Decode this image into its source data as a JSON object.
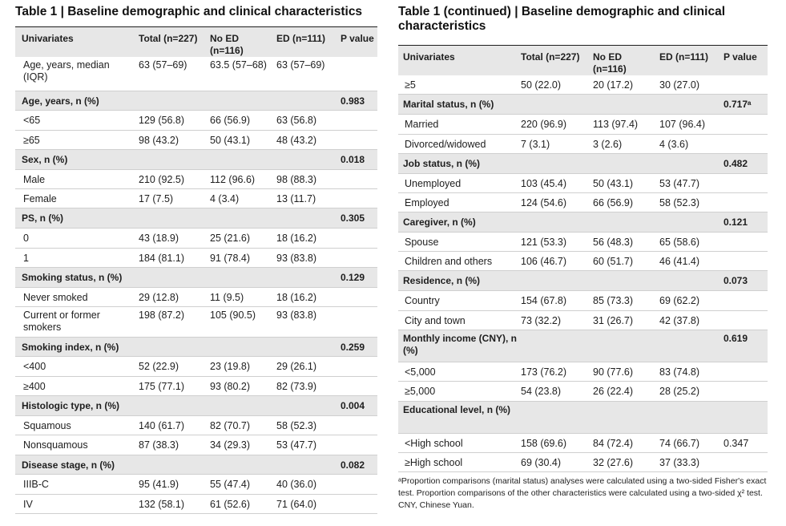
{
  "left_table": {
    "title": "Table 1 | Baseline demographic and clinical characteristics",
    "headers": [
      "Univariates",
      "Total (n=227)",
      "No ED (n=116)",
      "ED (n=111)",
      "P value"
    ],
    "rows": [
      {
        "kind": "data",
        "cells": [
          "Age, years, median (IQR)",
          "63 (57–69)",
          "63.5 (57–68)",
          "63 (57–69)",
          ""
        ]
      },
      {
        "kind": "section",
        "cells": [
          "Age, years, n (%)",
          "",
          "",
          "",
          "0.983"
        ]
      },
      {
        "kind": "data",
        "cells": [
          "<65",
          "129 (56.8)",
          "66 (56.9)",
          "63 (56.8)",
          ""
        ]
      },
      {
        "kind": "data",
        "cells": [
          "≥65",
          "98 (43.2)",
          "50 (43.1)",
          "48 (43.2)",
          ""
        ]
      },
      {
        "kind": "section",
        "cells": [
          "Sex, n (%)",
          "",
          "",
          "",
          "0.018"
        ]
      },
      {
        "kind": "data",
        "cells": [
          "Male",
          "210 (92.5)",
          "112 (96.6)",
          "98 (88.3)",
          ""
        ]
      },
      {
        "kind": "data",
        "cells": [
          "Female",
          "17 (7.5)",
          "4 (3.4)",
          "13 (11.7)",
          ""
        ]
      },
      {
        "kind": "section",
        "cells": [
          "PS, n (%)",
          "",
          "",
          "",
          "0.305"
        ]
      },
      {
        "kind": "data",
        "cells": [
          "0",
          "43 (18.9)",
          "25 (21.6)",
          "18 (16.2)",
          ""
        ]
      },
      {
        "kind": "data",
        "cells": [
          "1",
          "184 (81.1)",
          "91 (78.4)",
          "93 (83.8)",
          ""
        ]
      },
      {
        "kind": "section",
        "cells": [
          "Smoking status, n (%)",
          "",
          "",
          "",
          "0.129"
        ]
      },
      {
        "kind": "data",
        "cells": [
          "Never smoked",
          "29 (12.8)",
          "11 (9.5)",
          "18 (16.2)",
          ""
        ]
      },
      {
        "kind": "data",
        "cells": [
          "Current or former smokers",
          "198 (87.2)",
          "105 (90.5)",
          "93 (83.8)",
          ""
        ]
      },
      {
        "kind": "section",
        "cells": [
          "Smoking index, n (%)",
          "",
          "",
          "",
          "0.259"
        ]
      },
      {
        "kind": "data",
        "cells": [
          "<400",
          "52 (22.9)",
          "23 (19.8)",
          "29 (26.1)",
          ""
        ]
      },
      {
        "kind": "data",
        "cells": [
          "≥400",
          "175 (77.1)",
          "93 (80.2)",
          "82 (73.9)",
          ""
        ]
      },
      {
        "kind": "section",
        "cells": [
          "Histologic type, n (%)",
          "",
          "",
          "",
          "0.004"
        ]
      },
      {
        "kind": "data",
        "cells": [
          "Squamous",
          "140 (61.7)",
          "82 (70.7)",
          "58 (52.3)",
          ""
        ]
      },
      {
        "kind": "data",
        "cells": [
          "Nonsquamous",
          "87 (38.3)",
          "34 (29.3)",
          "53 (47.7)",
          ""
        ]
      },
      {
        "kind": "section",
        "cells": [
          "Disease stage, n (%)",
          "",
          "",
          "",
          "0.082"
        ]
      },
      {
        "kind": "data",
        "cells": [
          "IIIB-C",
          "95 (41.9)",
          "55 (47.4)",
          "40 (36.0)",
          ""
        ]
      },
      {
        "kind": "data",
        "cells": [
          "IV",
          "132 (58.1)",
          "61 (52.6)",
          "71 (64.0)",
          ""
        ]
      }
    ]
  },
  "right_table": {
    "title": "Table 1 (continued) | Baseline demographic and clinical characteristics",
    "headers": [
      "Univariates",
      "Total (n=227)",
      "No ED (n=116)",
      "ED (n=111)",
      "P value"
    ],
    "rows": [
      {
        "kind": "data",
        "cells": [
          "≥5",
          "50 (22.0)",
          "20 (17.2)",
          "30 (27.0)",
          ""
        ]
      },
      {
        "kind": "section",
        "cells": [
          "Marital status, n (%)",
          "",
          "",
          "",
          "0.717ᵃ"
        ]
      },
      {
        "kind": "data",
        "cells": [
          "Married",
          "220 (96.9)",
          "113 (97.4)",
          "107 (96.4)",
          ""
        ]
      },
      {
        "kind": "data",
        "cells": [
          "Divorced/widowed",
          "7 (3.1)",
          "3 (2.6)",
          "4 (3.6)",
          ""
        ]
      },
      {
        "kind": "section",
        "cells": [
          "Job status, n (%)",
          "",
          "",
          "",
          "0.482"
        ]
      },
      {
        "kind": "data",
        "cells": [
          "Unemployed",
          "103 (45.4)",
          "50 (43.1)",
          "53 (47.7)",
          ""
        ]
      },
      {
        "kind": "data",
        "cells": [
          "Employed",
          "124 (54.6)",
          "66 (56.9)",
          "58 (52.3)",
          ""
        ]
      },
      {
        "kind": "section",
        "cells": [
          "Caregiver, n (%)",
          "",
          "",
          "",
          "0.121"
        ]
      },
      {
        "kind": "data",
        "cells": [
          "Spouse",
          "121 (53.3)",
          "56 (48.3)",
          "65 (58.6)",
          ""
        ]
      },
      {
        "kind": "data",
        "cells": [
          "Children and others",
          "106 (46.7)",
          "60 (51.7)",
          "46 (41.4)",
          ""
        ]
      },
      {
        "kind": "section",
        "cells": [
          "Residence, n (%)",
          "",
          "",
          "",
          "0.073"
        ]
      },
      {
        "kind": "data",
        "cells": [
          "Country",
          "154 (67.8)",
          "85 (73.3)",
          "69 (62.2)",
          ""
        ]
      },
      {
        "kind": "data",
        "cells": [
          "City and town",
          "73 (32.2)",
          "31 (26.7)",
          "42 (37.8)",
          ""
        ]
      },
      {
        "kind": "section",
        "cells": [
          "Monthly income (CNY), n (%)",
          "",
          "",
          "",
          "0.619"
        ]
      },
      {
        "kind": "data",
        "cells": [
          "<5,000",
          "173 (76.2)",
          "90 (77.6)",
          "83 (74.8)",
          ""
        ]
      },
      {
        "kind": "data",
        "cells": [
          "≥5,000",
          "54 (23.8)",
          "26 (22.4)",
          "28 (25.2)",
          ""
        ]
      },
      {
        "kind": "section",
        "cells": [
          "Educational level, n (%)",
          "",
          "",
          "",
          ""
        ]
      },
      {
        "kind": "data",
        "cells": [
          "<High school",
          "158 (69.6)",
          "84 (72.4)",
          "74 (66.7)",
          "0.347"
        ]
      },
      {
        "kind": "data",
        "cells": [
          "≥High school",
          "69 (30.4)",
          "32 (27.6)",
          "37 (33.3)",
          ""
        ]
      }
    ],
    "footnote": "ᵃProportion comparisons (marital status) analyses were calculated using a two-sided Fisher's exact test. Proportion comparisons of the other characteristics were calculated using a two-sided χ² test. CNY, Chinese Yuan."
  }
}
